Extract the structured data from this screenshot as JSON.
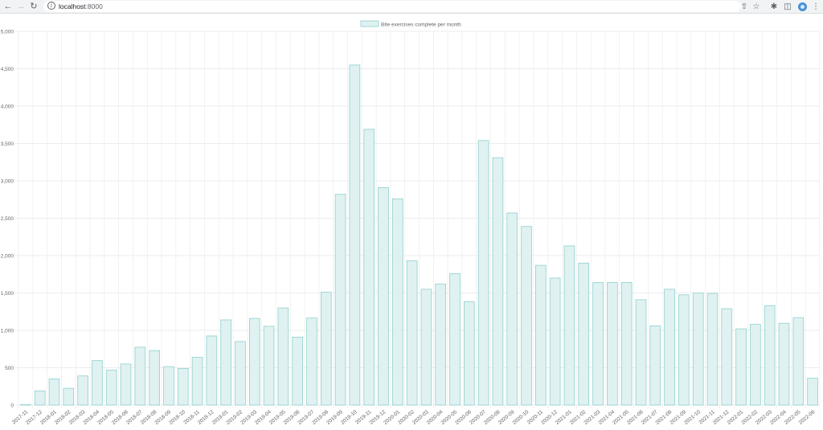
{
  "browser": {
    "url_host": "localhost",
    "url_port": ":8000",
    "icons": [
      "back-arrow-icon",
      "forward-arrow-icon",
      "reload-icon",
      "info-icon",
      "share-icon",
      "star-icon",
      "extensions-icon",
      "side-panel-icon",
      "profile-avatar-icon",
      "menu-dots-icon"
    ]
  },
  "chart_data": {
    "type": "bar",
    "title": "",
    "xlabel": "",
    "ylabel": "",
    "legend": {
      "position": "top",
      "entries": [
        "Bite exercises complete per month"
      ]
    },
    "series": [
      {
        "name": "Bite exercises complete per month",
        "fill": "#dff1f1",
        "stroke": "#8fd1cd",
        "values": [
          5,
          190,
          350,
          225,
          390,
          595,
          470,
          550,
          775,
          730,
          515,
          490,
          640,
          925,
          1140,
          850,
          1160,
          1055,
          1300,
          910,
          1165,
          1510,
          2820,
          4550,
          3690,
          2910,
          2760,
          1930,
          1550,
          1620,
          1760,
          1385,
          3540,
          3310,
          2570,
          2390,
          1870,
          1700,
          2130,
          1900,
          1640,
          1640,
          1640,
          1410,
          1060,
          1550,
          1475,
          1500,
          1495,
          1290,
          1020,
          1080,
          1330,
          1095,
          1170,
          360
        ]
      }
    ],
    "categories": [
      "2017-11",
      "2017-12",
      "2018-01",
      "2018-02",
      "2018-03",
      "2018-04",
      "2018-05",
      "2018-06",
      "2018-07",
      "2018-08",
      "2018-09",
      "2018-10",
      "2018-11",
      "2018-12",
      "2019-01",
      "2019-02",
      "2019-03",
      "2019-04",
      "2019-05",
      "2019-06",
      "2019-07",
      "2019-08",
      "2019-09",
      "2019-10",
      "2019-11",
      "2019-12",
      "2020-01",
      "2020-02",
      "2020-03",
      "2020-04",
      "2020-05",
      "2020-06",
      "2020-07",
      "2020-08",
      "2020-09",
      "2020-10",
      "2020-11",
      "2020-12",
      "2021-01",
      "2021-02",
      "2021-03",
      "2021-04",
      "2021-05",
      "2021-06",
      "2021-07",
      "2021-08",
      "2021-09",
      "2021-10",
      "2021-11",
      "2021-12",
      "2022-01",
      "2022-02",
      "2022-03",
      "2022-04",
      "2022-05",
      "2022-06"
    ],
    "ylim": [
      0,
      5000
    ],
    "yticks": [
      0,
      500,
      1000,
      1500,
      2000,
      2500,
      3000,
      3500,
      4000,
      4500,
      5000
    ],
    "ytick_labels": [
      "0",
      "500",
      "1,000",
      "1,500",
      "2,000",
      "2,500",
      "3,000",
      "3,500",
      "4,000",
      "4,500",
      "5,000"
    ],
    "grid": true
  }
}
